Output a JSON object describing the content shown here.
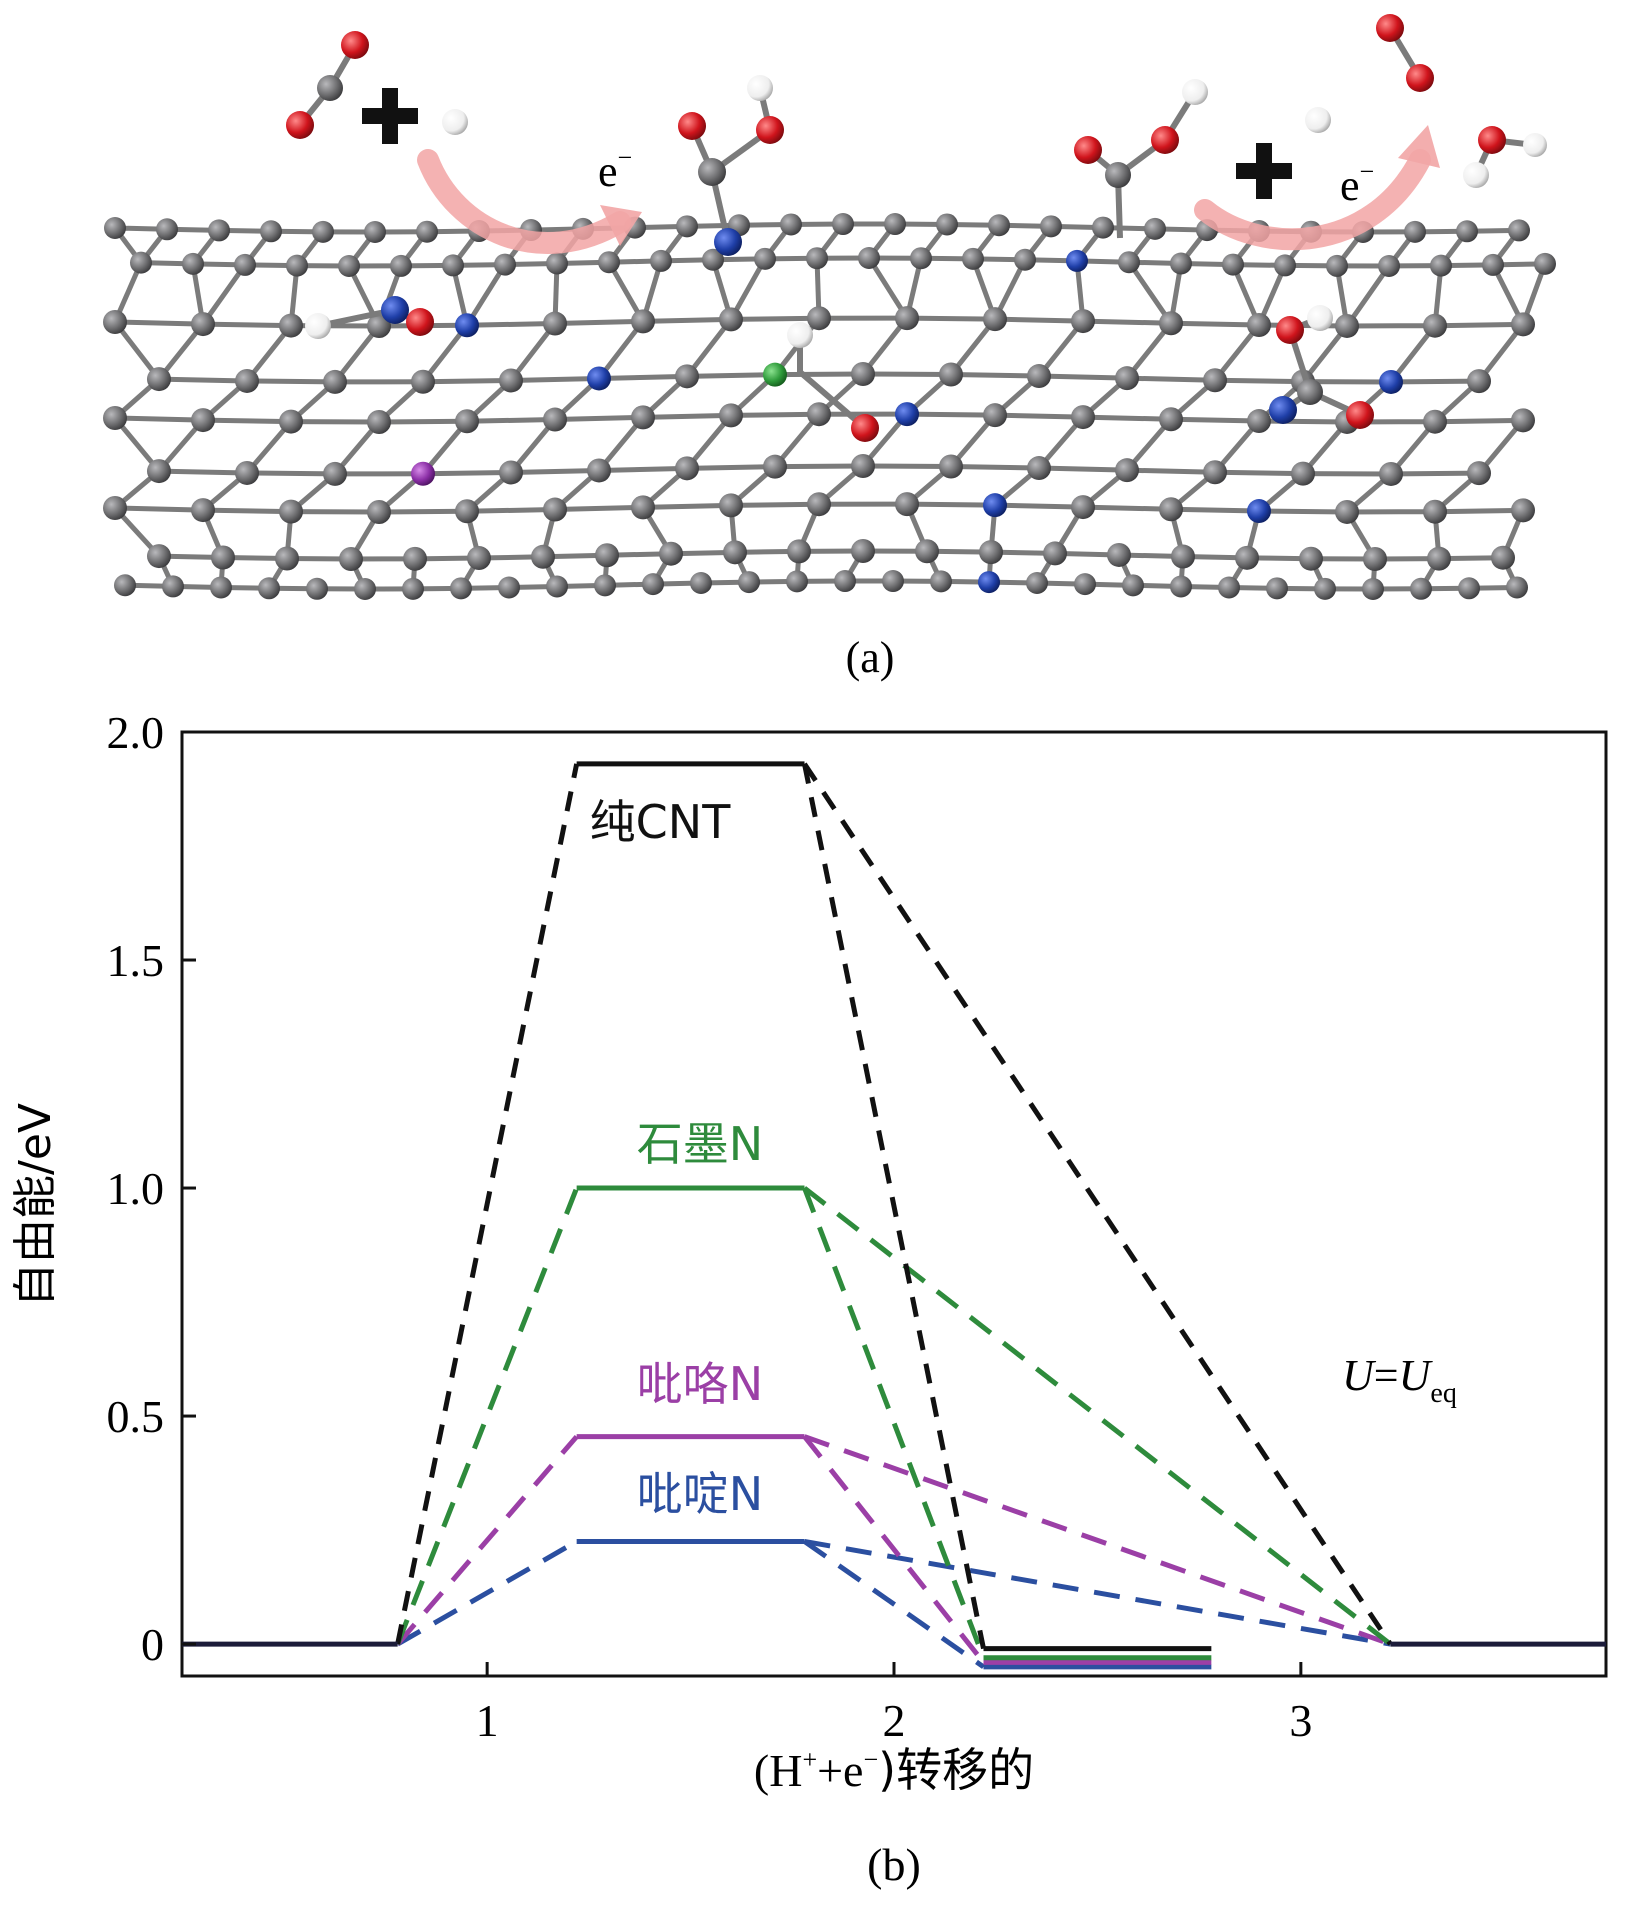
{
  "panel_a": {
    "label": "(a)",
    "electron_labels": [
      "e",
      "e"
    ],
    "electron_superscript": "−",
    "colors": {
      "carbon": "#6e6e70",
      "bond": "#7b7b7b",
      "nitrogen": "#1f3fa8",
      "oxygen": "#d0141c",
      "hydrogen": "#f2f2f2",
      "purple": "#8b2fa6",
      "green": "#2e9a3a",
      "arrow": "#f2a5a5"
    }
  },
  "panel_b": {
    "label": "(b)",
    "annotation_italic": "U",
    "annotation_eq": "=",
    "annotation_sub": "eq"
  },
  "chart_data": {
    "type": "line",
    "title": "",
    "xlabel_prefix": "(H",
    "xlabel_sup1": "+",
    "xlabel_mid": "+e",
    "xlabel_sup2": "−",
    "xlabel_suffix": ")转移的",
    "ylabel": "自由能/eV",
    "xlim": [
      0.25,
      3.75
    ],
    "ylim": [
      -0.07,
      2.0
    ],
    "x_ticks": [
      "1",
      "2",
      "3"
    ],
    "y_ticks": [
      "0",
      "0.5",
      "1.0",
      "1.5",
      "2.0"
    ],
    "series": [
      {
        "name": "纯CNT",
        "color": "#111111",
        "level": 1.93,
        "end_level": -0.01,
        "plateau": [
          1.22,
          1.78
        ],
        "step2_end": 2.22,
        "step3_end": 3.22,
        "short_end": 2.78
      },
      {
        "name": "石墨N",
        "color": "#2e8b3c",
        "level": 1.0,
        "end_level": -0.03,
        "plateau": [
          1.22,
          1.78
        ],
        "step2_end": 2.22,
        "step3_end": 3.22,
        "short_end": 2.78
      },
      {
        "name": "吡咯N",
        "color": "#9b3fa6",
        "level": 0.455,
        "end_level": -0.04,
        "plateau": [
          1.22,
          1.78
        ],
        "step2_end": 2.22,
        "step3_end": 3.22,
        "short_end": 2.78
      },
      {
        "name": "吡啶N",
        "color": "#2b4fa0",
        "level": 0.225,
        "end_level": -0.05,
        "plateau": [
          1.22,
          1.78
        ],
        "step2_end": 2.22,
        "step3_end": 3.22,
        "short_end": 2.78
      }
    ],
    "baseline_level": 0,
    "baseline_color": "#1c1c3a",
    "baseline_end": 0.78,
    "baseline_restart": 3.22,
    "grid": false
  }
}
